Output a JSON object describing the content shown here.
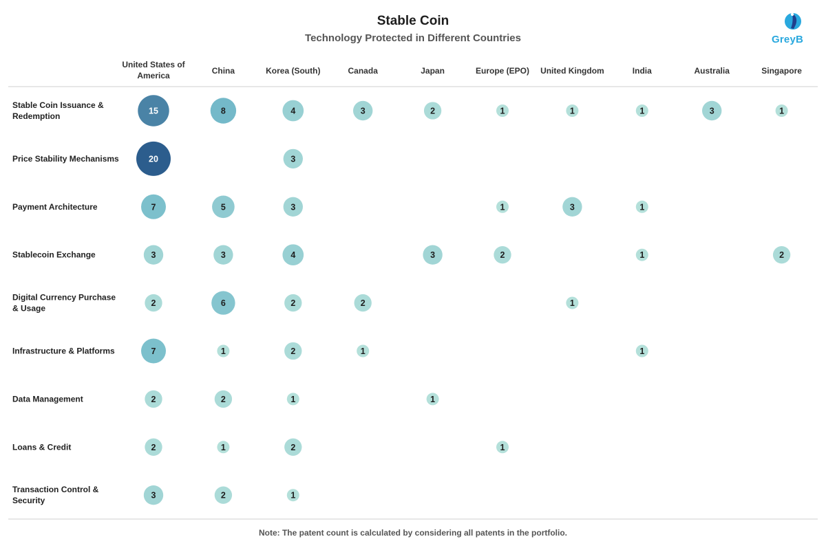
{
  "title": "Stable Coin",
  "subtitle": "Technology Protected in Different Countries",
  "brand": "GreyB",
  "note": "Note: The patent count is calculated by considering all patents in the portfolio.",
  "colors": {
    "scale_low": "#b4e0da",
    "scale_mid": "#76bccb",
    "scale_high": "#2c5d8d",
    "brand": "#29a8de"
  },
  "chart_data": {
    "type": "bubble-matrix",
    "title": "Stable Coin",
    "subtitle": "Technology Protected in Different Countries",
    "columns": [
      [
        "United States of",
        "America"
      ],
      [
        "China"
      ],
      [
        "Korea (South)"
      ],
      [
        "Canada"
      ],
      [
        "Japan"
      ],
      [
        "Europe (EPO)"
      ],
      [
        "United Kingdom"
      ],
      [
        "India"
      ],
      [
        "Australia"
      ],
      [
        "Singapore"
      ]
    ],
    "rows": [
      [
        "Stable Coin Issuance &",
        "Redemption"
      ],
      [
        "Price Stability Mechanisms"
      ],
      [
        "Payment Architecture"
      ],
      [
        "Stablecoin Exchange"
      ],
      [
        "Digital Currency Purchase",
        "& Usage"
      ],
      [
        "Infrastructure & Platforms"
      ],
      [
        "Data Management"
      ],
      [
        "Loans & Credit"
      ],
      [
        "Transaction Control &",
        "Security"
      ]
    ],
    "values": [
      [
        15,
        8,
        4,
        3,
        2,
        1,
        1,
        1,
        3,
        1
      ],
      [
        20,
        null,
        3,
        null,
        null,
        null,
        null,
        null,
        null,
        null
      ],
      [
        7,
        5,
        3,
        null,
        null,
        1,
        3,
        1,
        null,
        null
      ],
      [
        3,
        3,
        4,
        null,
        3,
        2,
        null,
        1,
        null,
        2
      ],
      [
        2,
        6,
        2,
        2,
        null,
        null,
        1,
        null,
        null,
        null
      ],
      [
        7,
        1,
        2,
        1,
        null,
        null,
        null,
        1,
        null,
        null
      ],
      [
        2,
        2,
        1,
        null,
        1,
        null,
        null,
        null,
        null,
        null
      ],
      [
        2,
        1,
        2,
        null,
        null,
        1,
        null,
        null,
        null,
        null
      ],
      [
        3,
        2,
        1,
        null,
        null,
        null,
        null,
        null,
        null,
        null
      ]
    ],
    "value_range": [
      1,
      20
    ]
  }
}
